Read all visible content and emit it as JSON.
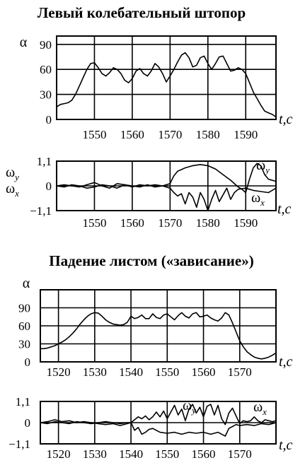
{
  "chart_data": [
    {
      "type": "line",
      "title": "Левый колебательный штопор",
      "ylabel": "α",
      "xlabel": "t,c",
      "xlim": [
        1540,
        1598
      ],
      "ylim": [
        0,
        100
      ],
      "xticks": [
        "1550",
        "1560",
        "1570",
        "1580",
        "1590"
      ],
      "yticks": [
        "90",
        "60",
        "30",
        "0"
      ],
      "series": [
        {
          "x": [
            1540,
            1541,
            1542,
            1543,
            1544,
            1545,
            1546,
            1547,
            1548,
            1549,
            1550,
            1551,
            1552,
            1553,
            1554,
            1555,
            1556,
            1557,
            1558,
            1559,
            1560,
            1561,
            1562,
            1563,
            1564,
            1565,
            1566,
            1567,
            1568,
            1569,
            1570,
            1571,
            1572,
            1573,
            1574,
            1575,
            1576,
            1577,
            1578,
            1579,
            1580,
            1581,
            1582,
            1583,
            1584,
            1585,
            1586,
            1587,
            1588,
            1589,
            1590,
            1591,
            1592,
            1593,
            1594,
            1595,
            1596,
            1597,
            1598
          ],
          "values": [
            15,
            18,
            19,
            20,
            23,
            30,
            40,
            50,
            60,
            67,
            68,
            62,
            55,
            52,
            56,
            62,
            60,
            55,
            47,
            44,
            49,
            58,
            61,
            55,
            52,
            58,
            67,
            63,
            55,
            45,
            52,
            60,
            69,
            77,
            80,
            74,
            63,
            65,
            74,
            76,
            67,
            60,
            67,
            75,
            76,
            67,
            58,
            59,
            62,
            60,
            55,
            44,
            33,
            25,
            17,
            10,
            8,
            6,
            3
          ]
        }
      ]
    },
    {
      "type": "line",
      "ylabel": "ωy ωx",
      "xlabel": "t,c",
      "xlim": [
        1540,
        1598
      ],
      "ylim": [
        -1.1,
        1.1
      ],
      "xticks": [
        "1550",
        "1560",
        "1570",
        "1580",
        "1590"
      ],
      "yticks": [
        "1,1",
        "0",
        "−1,1"
      ],
      "series": [
        {
          "name": "ωy",
          "x": [
            1540,
            1542,
            1544,
            1546,
            1548,
            1550,
            1552,
            1554,
            1556,
            1558,
            1560,
            1562,
            1564,
            1566,
            1568,
            1570,
            1571,
            1572,
            1574,
            1576,
            1578,
            1580,
            1582,
            1584,
            1586,
            1588,
            1589,
            1590,
            1591,
            1592,
            1593,
            1594,
            1595,
            1596,
            1598
          ],
          "values": [
            0.0,
            0.05,
            0.0,
            -0.05,
            0.05,
            0.15,
            0.0,
            -0.1,
            0.1,
            0.05,
            -0.05,
            0.05,
            0.0,
            0.05,
            0.0,
            0.1,
            0.45,
            0.65,
            0.8,
            0.9,
            0.95,
            0.9,
            0.75,
            0.5,
            0.25,
            -0.05,
            -0.15,
            -0.3,
            0.3,
            0.8,
            1.0,
            0.9,
            0.5,
            0.3,
            0.2
          ]
        },
        {
          "name": "ωx",
          "x": [
            1540,
            1542,
            1544,
            1546,
            1548,
            1550,
            1552,
            1554,
            1556,
            1558,
            1560,
            1562,
            1564,
            1566,
            1568,
            1570,
            1571,
            1572,
            1573,
            1574,
            1575,
            1576,
            1577,
            1578,
            1579,
            1580,
            1581,
            1582,
            1583,
            1584,
            1585,
            1586,
            1587,
            1588,
            1590,
            1592,
            1594,
            1596,
            1598
          ],
          "values": [
            0.0,
            -0.05,
            0.05,
            0.0,
            -0.1,
            -0.05,
            0.05,
            0.0,
            -0.1,
            0.05,
            0.0,
            -0.05,
            0.05,
            -0.05,
            0.0,
            -0.1,
            -0.3,
            -0.45,
            -0.35,
            -0.8,
            -0.3,
            -0.5,
            -0.95,
            -0.3,
            -0.6,
            -1.1,
            -0.6,
            -0.2,
            -0.7,
            -0.4,
            -0.1,
            -0.6,
            -0.3,
            -0.15,
            -0.1,
            -0.2,
            -0.25,
            -0.3,
            -0.1
          ]
        }
      ]
    },
    {
      "type": "line",
      "title": "Падение листом («зависание»)",
      "ylabel": "α",
      "xlabel": "t,c",
      "xlim": [
        1515,
        1580
      ],
      "ylim": [
        0,
        120
      ],
      "xticks": [
        "1520",
        "1530",
        "1540",
        "1550",
        "1560",
        "1570"
      ],
      "yticks": [
        "90",
        "60",
        "30",
        "0"
      ],
      "series": [
        {
          "x": [
            1515,
            1516,
            1517,
            1518,
            1519,
            1520,
            1521,
            1522,
            1523,
            1524,
            1525,
            1526,
            1527,
            1528,
            1529,
            1530,
            1531,
            1532,
            1533,
            1534,
            1535,
            1536,
            1537,
            1538,
            1539,
            1540,
            1541,
            1542,
            1543,
            1544,
            1545,
            1546,
            1547,
            1548,
            1549,
            1550,
            1551,
            1552,
            1553,
            1554,
            1555,
            1556,
            1557,
            1558,
            1559,
            1560,
            1561,
            1562,
            1563,
            1564,
            1565,
            1566,
            1567,
            1568,
            1569,
            1570,
            1571,
            1572,
            1573,
            1574,
            1575,
            1576,
            1577,
            1578,
            1579,
            1580
          ],
          "values": [
            22,
            22,
            23,
            25,
            27,
            30,
            33,
            37,
            42,
            48,
            55,
            63,
            70,
            76,
            80,
            82,
            81,
            76,
            70,
            66,
            63,
            62,
            61,
            62,
            66,
            76,
            72,
            74,
            78,
            72,
            72,
            80,
            74,
            72,
            78,
            80,
            75,
            70,
            77,
            82,
            76,
            73,
            80,
            82,
            75,
            76,
            78,
            73,
            70,
            68,
            73,
            82,
            78,
            65,
            50,
            35,
            25,
            17,
            12,
            8,
            6,
            5,
            6,
            8,
            11,
            15
          ]
        }
      ]
    },
    {
      "type": "line",
      "ylabel": "",
      "xlabel": "t,c",
      "xlim": [
        1515,
        1580
      ],
      "ylim": [
        -1.1,
        1.1
      ],
      "xticks": [
        "1520",
        "1530",
        "1540",
        "1550",
        "1560",
        "1570"
      ],
      "yticks": [
        "1,1",
        "0",
        "−1,1"
      ],
      "series": [
        {
          "name": "ωy",
          "x": [
            1515,
            1517,
            1519,
            1521,
            1523,
            1525,
            1527,
            1529,
            1531,
            1533,
            1535,
            1537,
            1539,
            1540,
            1541,
            1542,
            1543,
            1544,
            1545,
            1546,
            1547,
            1548,
            1549,
            1550,
            1551,
            1552,
            1553,
            1554,
            1555,
            1556,
            1557,
            1558,
            1559,
            1560,
            1561,
            1562,
            1563,
            1564,
            1565,
            1566,
            1567,
            1568,
            1569,
            1570,
            1571,
            1572,
            1573,
            1574,
            1575,
            1576,
            1577,
            1578,
            1579,
            1580
          ],
          "values": [
            0.0,
            0.05,
            0.15,
            0.05,
            0.1,
            0.0,
            0.05,
            0.0,
            -0.05,
            -0.1,
            -0.05,
            -0.15,
            -0.05,
            0.0,
            0.15,
            0.3,
            0.2,
            0.35,
            0.15,
            0.3,
            0.55,
            0.3,
            0.6,
            0.2,
            0.55,
            0.9,
            0.4,
            0.7,
            0.1,
            0.7,
            0.95,
            0.5,
            0.8,
            0.3,
            0.85,
            0.95,
            0.4,
            0.9,
            0.2,
            -0.1,
            0.5,
            0.75,
            0.35,
            -0.05,
            0.1,
            0.05,
            0.1,
            0.3,
            0.1,
            0.0,
            0.15,
            0.1,
            0.05,
            0.1
          ]
        },
        {
          "name": "ωx",
          "x": [
            1515,
            1517,
            1519,
            1521,
            1523,
            1525,
            1527,
            1529,
            1531,
            1533,
            1535,
            1537,
            1539,
            1540,
            1541,
            1542,
            1543,
            1544,
            1545,
            1546,
            1548,
            1550,
            1552,
            1554,
            1556,
            1558,
            1560,
            1562,
            1564,
            1566,
            1567,
            1568,
            1569,
            1570,
            1572,
            1574,
            1576,
            1578,
            1580
          ],
          "values": [
            0.0,
            -0.05,
            0.05,
            0.0,
            -0.05,
            0.05,
            0.0,
            -0.05,
            0.0,
            0.05,
            0.0,
            -0.05,
            0.0,
            0.0,
            -0.4,
            -0.25,
            -0.6,
            -0.5,
            -0.35,
            -0.3,
            -0.5,
            -0.55,
            -0.5,
            -0.6,
            -0.5,
            -0.55,
            -0.5,
            -0.6,
            -0.5,
            -0.7,
            -0.3,
            -0.2,
            -0.1,
            -0.15,
            -0.1,
            -0.15,
            -0.05,
            -0.1,
            0.0
          ]
        }
      ]
    }
  ]
}
